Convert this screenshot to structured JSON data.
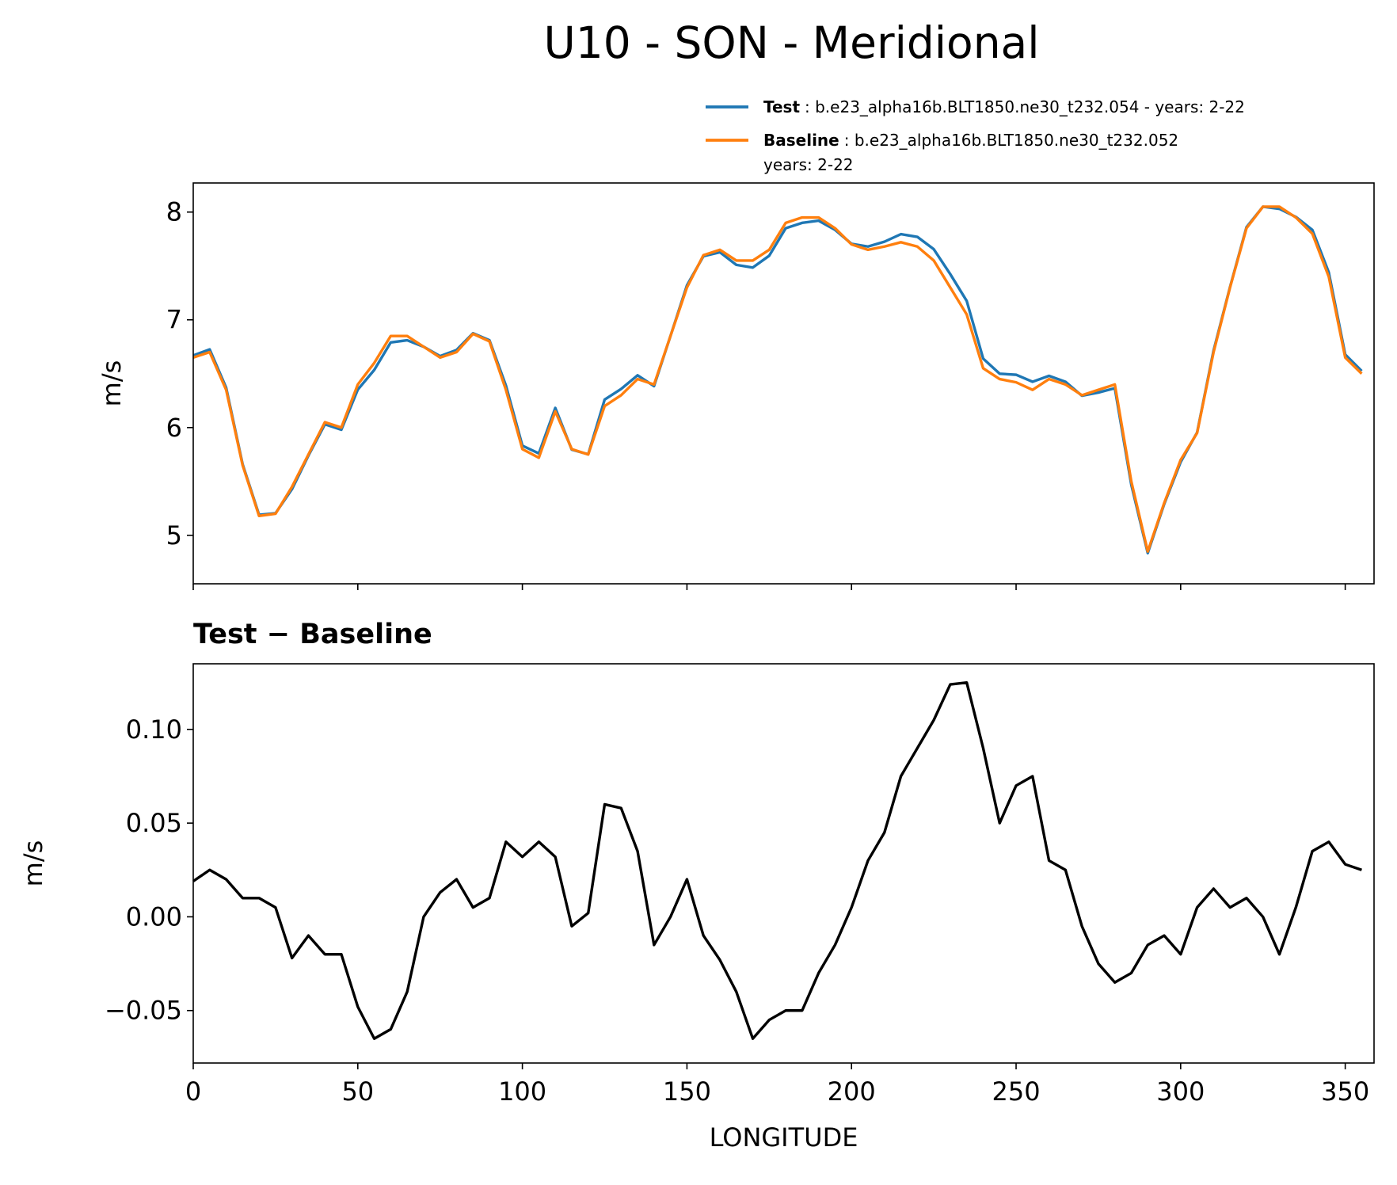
{
  "chart_data": [
    {
      "type": "line",
      "title": "U10 - SON - Meridional",
      "ylabel": "m/s",
      "x": [
        0,
        5,
        10,
        15,
        20,
        25,
        30,
        35,
        40,
        45,
        50,
        55,
        60,
        65,
        70,
        75,
        80,
        85,
        90,
        95,
        100,
        105,
        110,
        115,
        120,
        125,
        130,
        135,
        140,
        145,
        150,
        155,
        160,
        165,
        170,
        175,
        180,
        185,
        190,
        195,
        200,
        205,
        210,
        215,
        220,
        225,
        230,
        235,
        240,
        245,
        250,
        255,
        260,
        265,
        270,
        275,
        280,
        285,
        290,
        295,
        300,
        305,
        310,
        315,
        320,
        325,
        330,
        335,
        340,
        345,
        350,
        355
      ],
      "series": [
        {
          "name": "Test",
          "legend_lines": [
            ": b.e23_alpha16b.BLT1850.ne30_t232.054 - years: 2-22"
          ],
          "color": "#1f77b4",
          "values": [
            6.669,
            6.725,
            6.37,
            5.66,
            5.19,
            5.205,
            5.428,
            5.74,
            6.03,
            5.98,
            6.352,
            6.535,
            6.79,
            6.81,
            6.75,
            6.663,
            6.72,
            6.875,
            6.81,
            6.39,
            5.832,
            5.76,
            6.182,
            5.795,
            5.752,
            6.26,
            6.358,
            6.485,
            6.385,
            6.85,
            7.32,
            7.59,
            7.627,
            7.51,
            7.485,
            7.595,
            7.85,
            7.9,
            7.92,
            7.835,
            7.705,
            7.68,
            7.725,
            7.795,
            7.77,
            7.655,
            7.424,
            7.175,
            6.64,
            6.5,
            6.49,
            6.425,
            6.48,
            6.425,
            6.295,
            6.325,
            6.365,
            5.47,
            4.835,
            5.29,
            5.68,
            5.955,
            6.715,
            7.305,
            7.86,
            8.05,
            8.03,
            7.955,
            7.835,
            7.44,
            6.678,
            6.525
          ]
        },
        {
          "name": "Baseline",
          "legend_lines": [
            ": b.e23_alpha16b.BLT1850.ne30_t232.052",
            "years: 2-22"
          ],
          "color": "#ff7f0e",
          "values": [
            6.65,
            6.7,
            6.35,
            5.65,
            5.18,
            5.2,
            5.45,
            5.75,
            6.05,
            6.0,
            6.4,
            6.6,
            6.85,
            6.85,
            6.75,
            6.65,
            6.7,
            6.87,
            6.8,
            6.35,
            5.8,
            5.72,
            6.15,
            5.8,
            5.75,
            6.2,
            6.3,
            6.45,
            6.4,
            6.85,
            7.3,
            7.6,
            7.65,
            7.55,
            7.55,
            7.65,
            7.9,
            7.95,
            7.95,
            7.85,
            7.7,
            7.65,
            7.68,
            7.72,
            7.68,
            7.55,
            7.3,
            7.05,
            6.55,
            6.45,
            6.42,
            6.35,
            6.45,
            6.4,
            6.3,
            6.35,
            6.4,
            5.5,
            4.85,
            5.3,
            5.7,
            5.95,
            6.7,
            7.3,
            7.85,
            8.05,
            8.05,
            7.95,
            7.8,
            7.4,
            6.65,
            6.5
          ]
        }
      ],
      "xlim": [
        0,
        358.75
      ],
      "xticks": [
        0,
        50,
        100,
        150,
        200,
        250,
        300,
        350
      ],
      "ylim": [
        4.55,
        8.27
      ],
      "yticks": [
        5,
        6,
        7,
        8
      ]
    },
    {
      "type": "line",
      "title": "Test − Baseline",
      "ylabel": "m/s",
      "xlabel": "LONGITUDE",
      "x": [
        0,
        5,
        10,
        15,
        20,
        25,
        30,
        35,
        40,
        45,
        50,
        55,
        60,
        65,
        70,
        75,
        80,
        85,
        90,
        95,
        100,
        105,
        110,
        115,
        120,
        125,
        130,
        135,
        140,
        145,
        150,
        155,
        160,
        165,
        170,
        175,
        180,
        185,
        190,
        195,
        200,
        205,
        210,
        215,
        220,
        225,
        230,
        235,
        240,
        245,
        250,
        255,
        260,
        265,
        270,
        275,
        280,
        285,
        290,
        295,
        300,
        305,
        310,
        315,
        320,
        325,
        330,
        335,
        340,
        345,
        350,
        355
      ],
      "series": [
        {
          "color": "#000000",
          "values": [
            0.019,
            0.025,
            0.02,
            0.01,
            0.01,
            0.005,
            -0.022,
            -0.01,
            -0.02,
            -0.02,
            -0.048,
            -0.065,
            -0.06,
            -0.04,
            0.0,
            0.013,
            0.02,
            0.005,
            0.01,
            0.04,
            0.032,
            0.04,
            0.032,
            -0.005,
            0.002,
            0.06,
            0.058,
            0.035,
            -0.015,
            0.0,
            0.02,
            -0.01,
            -0.023,
            -0.04,
            -0.065,
            -0.055,
            -0.05,
            -0.05,
            -0.03,
            -0.015,
            0.005,
            0.03,
            0.045,
            0.075,
            0.09,
            0.105,
            0.124,
            0.125,
            0.09,
            0.05,
            0.07,
            0.075,
            0.03,
            0.025,
            -0.005,
            -0.025,
            -0.035,
            -0.03,
            -0.015,
            -0.01,
            -0.02,
            0.005,
            0.015,
            0.005,
            0.01,
            0.0,
            -0.02,
            0.005,
            0.035,
            0.04,
            0.028,
            0.025
          ]
        }
      ],
      "xlim": [
        0,
        358.75
      ],
      "xticks": [
        0,
        50,
        100,
        150,
        200,
        250,
        300,
        350
      ],
      "ylim": [
        -0.078,
        0.135
      ],
      "yticks": [
        {
          "value": -0.05,
          "label": "−0.05"
        },
        {
          "value": 0,
          "label": "0.00"
        },
        0.05,
        {
          "value": 0.1,
          "label": "0.10"
        }
      ]
    }
  ]
}
